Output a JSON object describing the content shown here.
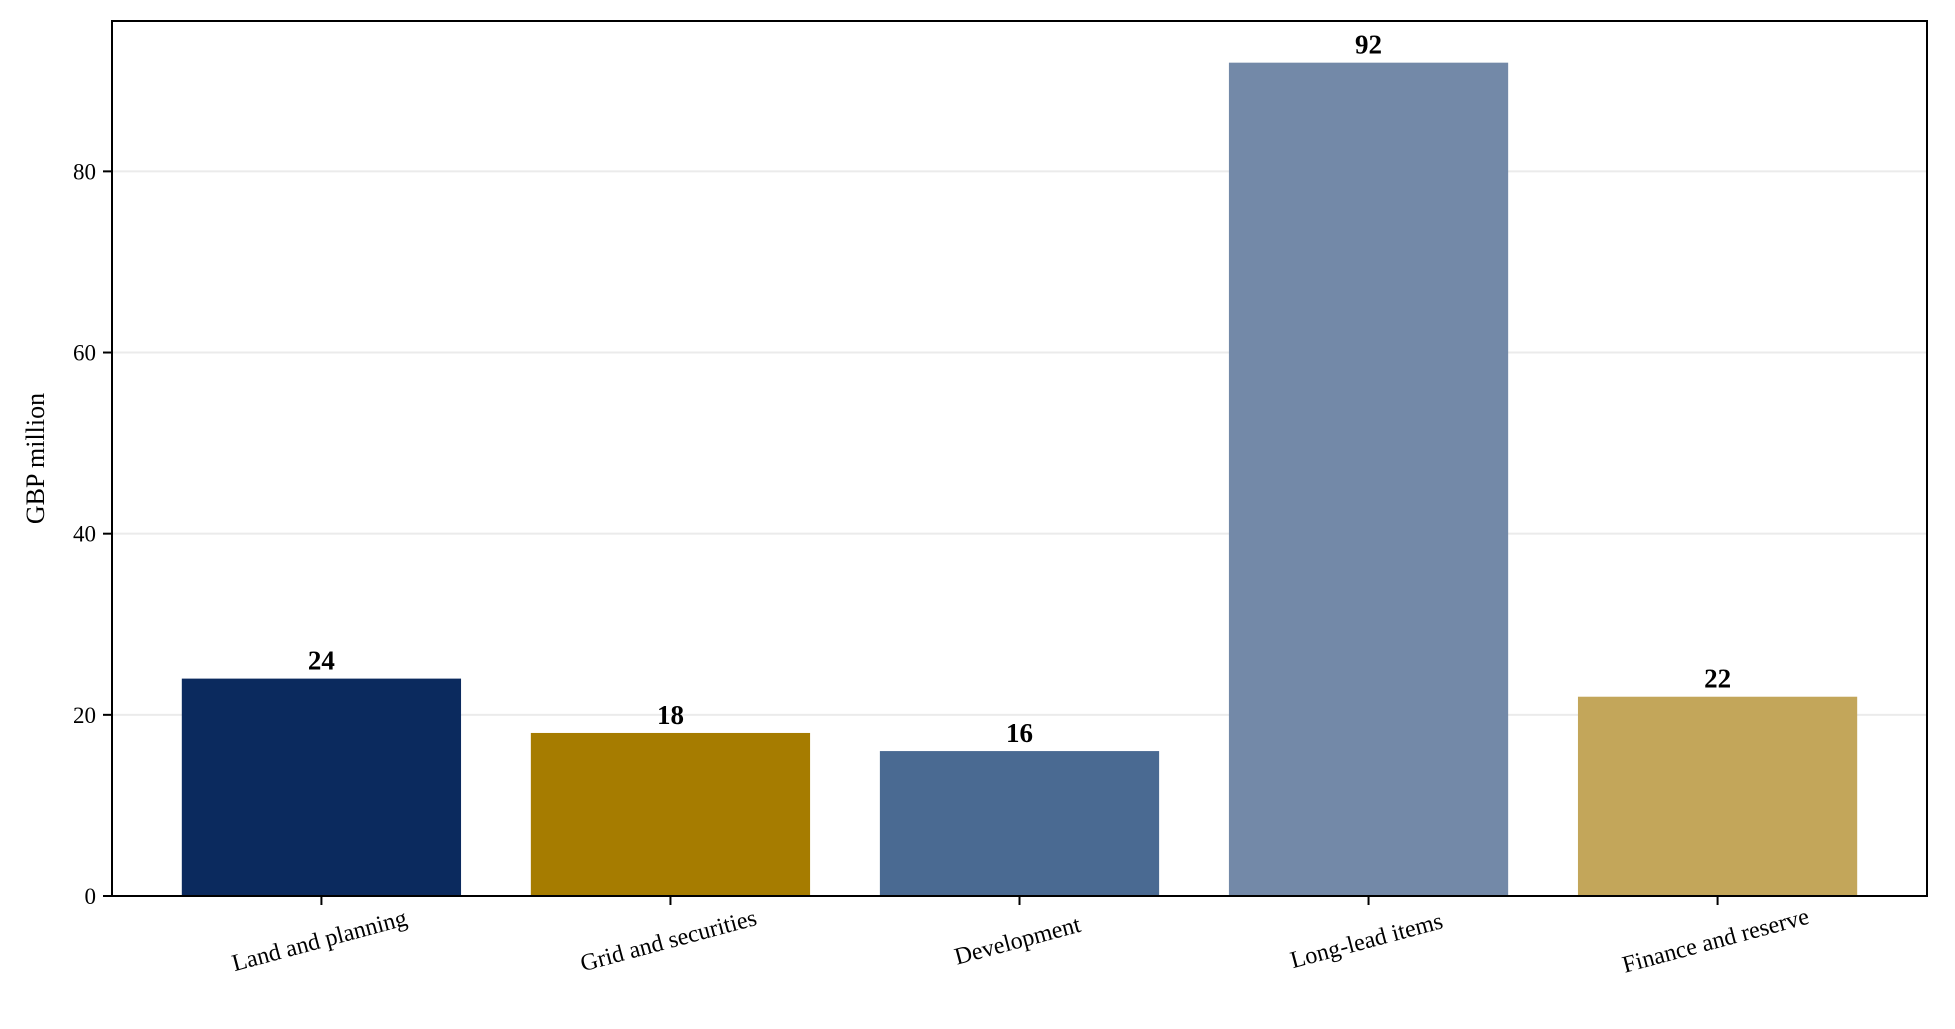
{
  "chart_data": {
    "type": "bar",
    "categories": [
      "Land and planning",
      "Grid and securities",
      "Development",
      "Long-lead items",
      "Finance and reserve"
    ],
    "values": [
      24,
      18,
      16,
      92,
      22
    ],
    "value_labels": [
      "24",
      "18",
      "16",
      "92",
      "22"
    ],
    "colors": [
      "#0b2a5e",
      "#a67c00",
      "#4a6a92",
      "#7389a8",
      "#c3a65a"
    ],
    "title": "",
    "xlabel": "",
    "ylabel": "GBP million",
    "ylim": [
      0,
      96.6
    ],
    "yticks": [
      0,
      20,
      40,
      60,
      80
    ],
    "ytick_labels": [
      "0",
      "20",
      "40",
      "60",
      "80"
    ],
    "grid": "horizontal",
    "legend": "none",
    "xtick_rotation_deg": -15
  }
}
